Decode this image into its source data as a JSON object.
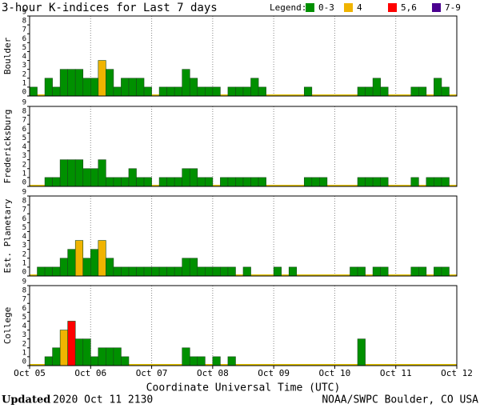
{
  "chart_data": {
    "type": "bar",
    "title": "3-hour K-indices for Last 7 days",
    "legend_title": "Legend:",
    "legend": [
      {
        "label": "0-3",
        "color": "#009000"
      },
      {
        "label": "4",
        "color": "#f0b400"
      },
      {
        "label": "5,6",
        "color": "#ff0000"
      },
      {
        "label": "7-9",
        "color": "#4b0090"
      }
    ],
    "xlabel": "Coordinate Universal Time (UTC)",
    "x_ticks": [
      "Oct 05",
      "Oct 06",
      "Oct 07",
      "Oct 08",
      "Oct 09",
      "Oct 10",
      "Oct 11",
      "Oct 12"
    ],
    "ylim": [
      0,
      9
    ],
    "yticks": [
      0,
      1,
      2,
      3,
      4,
      5,
      6,
      7,
      8,
      9
    ],
    "panels": [
      {
        "name": "Boulder",
        "values": [
          1,
          0,
          2,
          1,
          3,
          3,
          3,
          2,
          2,
          4,
          3,
          1,
          2,
          2,
          2,
          1,
          0,
          1,
          1,
          1,
          3,
          2,
          1,
          1,
          1,
          0,
          1,
          1,
          1,
          2,
          1,
          0,
          0,
          0,
          0,
          0,
          1,
          0,
          0,
          0,
          0,
          0,
          0,
          1,
          1,
          2,
          1,
          0,
          0,
          0,
          1,
          1,
          0,
          2,
          1,
          0
        ]
      },
      {
        "name": "Fredericksburg",
        "values": [
          0,
          0,
          1,
          1,
          3,
          3,
          3,
          2,
          2,
          3,
          1,
          1,
          1,
          2,
          1,
          1,
          0,
          1,
          1,
          1,
          2,
          2,
          1,
          1,
          0,
          1,
          1,
          1,
          1,
          1,
          1,
          0,
          0,
          0,
          0,
          0,
          1,
          1,
          1,
          0,
          0,
          0,
          0,
          1,
          1,
          1,
          1,
          0,
          0,
          0,
          1,
          0,
          1,
          1,
          1,
          0
        ]
      },
      {
        "name": "Est. Planetary",
        "values": [
          0,
          1,
          1,
          1,
          2,
          3,
          4,
          2,
          3,
          4,
          2,
          1,
          1,
          1,
          1,
          1,
          1,
          1,
          1,
          1,
          2,
          2,
          1,
          1,
          1,
          1,
          1,
          0,
          1,
          0,
          0,
          0,
          1,
          0,
          1,
          0,
          0,
          0,
          0,
          0,
          0,
          0,
          1,
          1,
          0,
          1,
          1,
          0,
          0,
          0,
          1,
          1,
          0,
          1,
          1,
          0
        ]
      },
      {
        "name": "College",
        "values": [
          0,
          0,
          1,
          2,
          4,
          5,
          3,
          3,
          1,
          2,
          2,
          2,
          1,
          0,
          0,
          0,
          0,
          0,
          0,
          0,
          2,
          1,
          1,
          0,
          1,
          0,
          1,
          0,
          0,
          0,
          0,
          0,
          0,
          0,
          0,
          0,
          0,
          0,
          0,
          0,
          0,
          0,
          0,
          3,
          0,
          0,
          0,
          0,
          0,
          0,
          0,
          0,
          0,
          0,
          0,
          0
        ]
      }
    ]
  },
  "footer": {
    "updated_label": "Updated",
    "updated": "2020 Oct 11 2130",
    "credit": "NOAA/SWPC Boulder, CO USA"
  }
}
